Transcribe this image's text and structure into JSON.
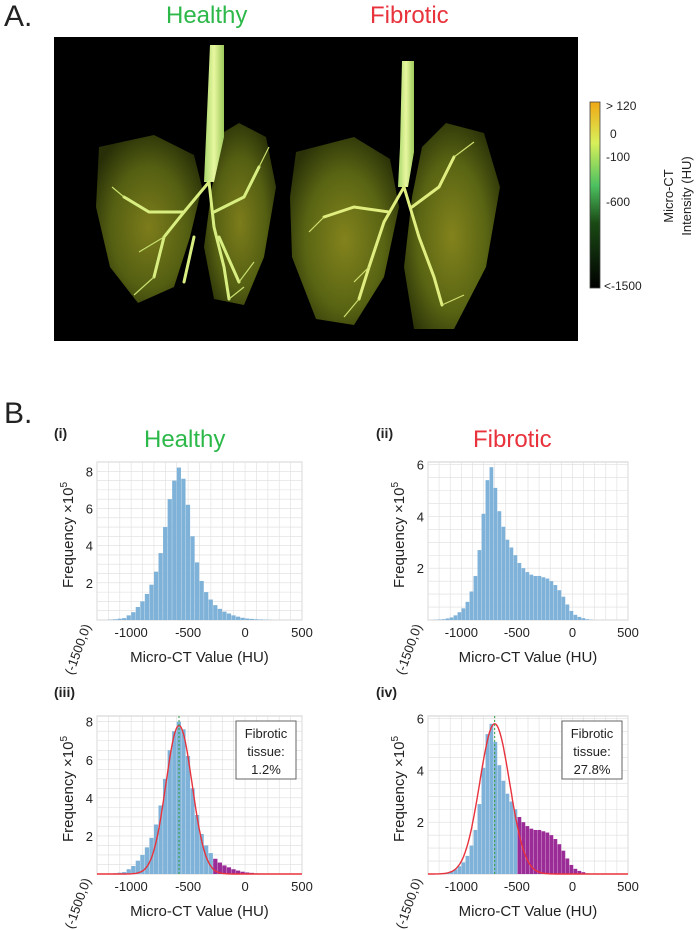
{
  "panel_a": {
    "letter": "A.",
    "titles": [
      "Healthy",
      "Fibrotic"
    ],
    "title_colors": [
      "#2db84a",
      "#e8323c"
    ],
    "colorbar": {
      "ticks": [
        "> 120",
        "0",
        "-100",
        "-600",
        "<-1500"
      ],
      "label_line1": "Micro-CT",
      "label_line2": "Intensity (HU)"
    }
  },
  "panel_b": {
    "letter": "B.",
    "titles": [
      "Healthy",
      "Fibrotic"
    ]
  },
  "colors": {
    "healthy_bar": "#7fb2d8",
    "fibrotic_region": "#9b2b96",
    "fit_curve": "#e8323c",
    "peak_line": "#2e9e3e",
    "grid": "#dedede"
  },
  "chart_data": [
    {
      "id": "i",
      "tag": "(i)",
      "type": "bar",
      "xlabel": "Micro-CT Value (HU)",
      "ylabel": "Frequency ×10",
      "ylabel_sup": "5",
      "origin_label": "(-1500,0)",
      "xlim": [
        -1300,
        500
      ],
      "ylim": [
        0,
        8.5
      ],
      "xticks": [
        -1000,
        -500,
        0,
        500
      ],
      "yticks": [
        2,
        4,
        6,
        8
      ],
      "xtick_labels": [
        "-1000",
        "-500",
        "0",
        "500"
      ],
      "ytick_labels": [
        "2",
        "4",
        "6",
        "8"
      ],
      "bin_start": -1200,
      "bin_width": 40,
      "values": [
        0.02,
        0.04,
        0.07,
        0.1,
        0.25,
        0.42,
        0.7,
        1.0,
        1.4,
        1.9,
        2.6,
        3.6,
        5.0,
        6.5,
        7.5,
        8.2,
        7.6,
        6.2,
        4.5,
        3.1,
        2.1,
        1.5,
        1.1,
        0.8,
        0.6,
        0.45,
        0.35,
        0.25,
        0.18,
        0.12,
        0.08,
        0.06,
        0.04,
        0.03,
        0.02,
        0.01
      ]
    },
    {
      "id": "ii",
      "tag": "(ii)",
      "type": "bar",
      "xlabel": "Micro-CT Value (HU)",
      "ylabel": "Frequency ×10",
      "ylabel_sup": "5",
      "origin_label": "(-1500,0)",
      "xlim": [
        -1300,
        500
      ],
      "ylim": [
        0,
        6.1
      ],
      "xticks": [
        -1000,
        -500,
        0,
        500
      ],
      "yticks": [
        2,
        4,
        6
      ],
      "xtick_labels": [
        "-1000",
        "-500",
        "0",
        "500"
      ],
      "ytick_labels": [
        "2",
        "4",
        "6"
      ],
      "bin_start": -1250,
      "bin_width": 36,
      "values": [
        0.01,
        0.02,
        0.03,
        0.06,
        0.1,
        0.18,
        0.3,
        0.45,
        0.7,
        1.1,
        1.7,
        2.7,
        4.1,
        5.4,
        5.9,
        5.1,
        4.2,
        3.6,
        3.1,
        2.8,
        2.5,
        2.2,
        2.0,
        1.85,
        1.75,
        1.7,
        1.7,
        1.65,
        1.6,
        1.5,
        1.35,
        1.15,
        0.9,
        0.6,
        0.35,
        0.2,
        0.12,
        0.07,
        0.03,
        0.01
      ]
    },
    {
      "id": "iii",
      "tag": "(iii)",
      "type": "bar",
      "xlabel": "Micro-CT Value (HU)",
      "ylabel": "Frequency ×10",
      "ylabel_sup": "5",
      "origin_label": "(-1500,0)",
      "xlim": [
        -1300,
        500
      ],
      "ylim": [
        0,
        8.3
      ],
      "xticks": [
        -1000,
        -500,
        0,
        500
      ],
      "yticks": [
        2,
        4,
        6,
        8
      ],
      "xtick_labels": [
        "-1000",
        "-500",
        "0",
        "500"
      ],
      "ytick_labels": [
        "2",
        "4",
        "6",
        "8"
      ],
      "bin_start": -1200,
      "bin_width": 40,
      "values": [
        0.02,
        0.04,
        0.07,
        0.1,
        0.25,
        0.42,
        0.7,
        1.0,
        1.4,
        1.9,
        2.6,
        3.6,
        5.0,
        6.5,
        7.5,
        8.0,
        7.6,
        6.2,
        4.5,
        3.1,
        2.1,
        1.5,
        1.1,
        0.8,
        0.6,
        0.45,
        0.35,
        0.25,
        0.18,
        0.12,
        0.08,
        0.06,
        0.04,
        0.03,
        0.02,
        0.01
      ],
      "fit": {
        "mu": -580,
        "sigma": 115,
        "peak": 7.8
      },
      "fibrotic_threshold": -280,
      "peak_x": -580,
      "annotation": [
        "Fibrotic",
        "tissue:",
        "1.2%"
      ]
    },
    {
      "id": "iv",
      "tag": "(iv)",
      "type": "bar",
      "xlabel": "Micro-CT Value (HU)",
      "ylabel": "Frequency ×10",
      "ylabel_sup": "5",
      "origin_label": "(-1500,0)",
      "xlim": [
        -1300,
        500
      ],
      "ylim": [
        0,
        6.1
      ],
      "xticks": [
        -1000,
        -500,
        0,
        500
      ],
      "yticks": [
        2,
        4,
        6
      ],
      "xtick_labels": [
        "-1000",
        "-500",
        "0",
        "500"
      ],
      "ytick_labels": [
        "2",
        "4",
        "6"
      ],
      "bin_start": -1250,
      "bin_width": 36,
      "values": [
        0.01,
        0.02,
        0.03,
        0.06,
        0.1,
        0.18,
        0.3,
        0.45,
        0.7,
        1.1,
        1.7,
        2.7,
        4.1,
        5.4,
        5.8,
        5.1,
        4.2,
        3.6,
        3.1,
        2.8,
        2.5,
        2.2,
        2.0,
        1.85,
        1.75,
        1.7,
        1.7,
        1.65,
        1.6,
        1.5,
        1.35,
        1.15,
        0.9,
        0.6,
        0.35,
        0.2,
        0.12,
        0.07,
        0.03,
        0.01
      ],
      "fit": {
        "mu": -700,
        "sigma": 135,
        "peak": 5.8
      },
      "fibrotic_threshold": -520,
      "peak_x": -700,
      "annotation": [
        "Fibrotic",
        "tissue:",
        "27.8%"
      ]
    }
  ]
}
